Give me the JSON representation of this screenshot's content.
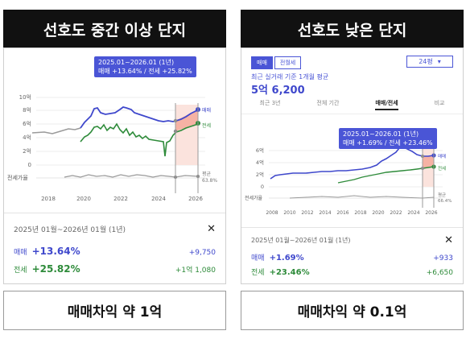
{
  "left": {
    "header": "선호도 중간 이상 단지",
    "tooltip": {
      "period": "2025.01~2026.01 (1년)",
      "values": "매매 +13.64% / 전세 +25.82%"
    },
    "y_ticks": [
      "10억",
      "8억",
      "6억",
      "4억",
      "2억",
      "0"
    ],
    "x_ticks": [
      "2018",
      "2020",
      "2022",
      "2024",
      "2026"
    ],
    "lower_axis_label": "전세가율",
    "legend": {
      "sale": "매매",
      "rent": "전세",
      "avg": "평균",
      "avg_value": "63.8%"
    },
    "summary": {
      "period": "2025년 01월~2026년 01월 (1년)",
      "close": "✕",
      "sale": {
        "label": "매매",
        "pct": "+13.64%",
        "amount": "+9,750"
      },
      "rent": {
        "label": "전세",
        "pct": "+25.82%",
        "amount": "+1억 1,080"
      }
    },
    "footer": "매매차익 약 1억"
  },
  "right": {
    "header": "선호도 낮은 단지",
    "tabs": [
      "매매",
      "전월세"
    ],
    "size": "24평",
    "avg_label": "최근 실거래 기준 1개월 평균",
    "avg_price": "5억 6,200",
    "period_tabs": [
      "최근 3년",
      "전체 기간",
      "매매/전세",
      "비교"
    ],
    "tooltip": {
      "period": "2025.01~2026.01 (1년)",
      "values": "매매 +1.69% / 전세 +23.46%"
    },
    "y_ticks": [
      "6억",
      "4억",
      "2억",
      "0"
    ],
    "x_ticks": [
      "2008",
      "2010",
      "2012",
      "2014",
      "2016",
      "2018",
      "2020",
      "2022",
      "2024",
      "2026"
    ],
    "lower_axis_label": "전세가율",
    "legend": {
      "sale": "매매",
      "rent": "전세",
      "avg": "평균",
      "avg_value": "66.4%"
    },
    "summary": {
      "period": "2025년 01월~2026년 01월 (1년)",
      "close": "✕",
      "sale": {
        "label": "매매",
        "pct": "+1.69%",
        "amount": "+933"
      },
      "rent": {
        "label": "전세",
        "pct": "+23.46%",
        "amount": "+6,650"
      }
    },
    "footer": "매매차익 약 0.1억"
  },
  "colors": {
    "sale": "#3f48cc",
    "rent": "#2e8b3a",
    "highlight": "#f4a99a",
    "tooltip": "#4a55d6"
  }
}
